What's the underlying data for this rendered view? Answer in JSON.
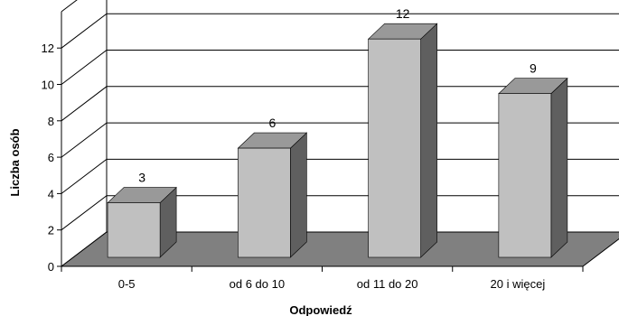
{
  "chart_data": {
    "type": "bar",
    "categories": [
      "0-5",
      "od 6 do 10",
      "od 11 do 20",
      "20 i więcej"
    ],
    "values": [
      3,
      6,
      12,
      9
    ],
    "title": "",
    "xlabel": "Odpowiedź",
    "ylabel": "Liczba osób",
    "ylim": [
      0,
      14
    ],
    "yticks": [
      0,
      2,
      4,
      6,
      8,
      10,
      12
    ],
    "grid": true,
    "style": "3d-column",
    "colors": {
      "bar_front": "#c0c0c0",
      "bar_top": "#999999",
      "bar_side": "#5f5f5f",
      "floor": "#808080",
      "gridline": "#000000",
      "axis": "#000000"
    }
  }
}
